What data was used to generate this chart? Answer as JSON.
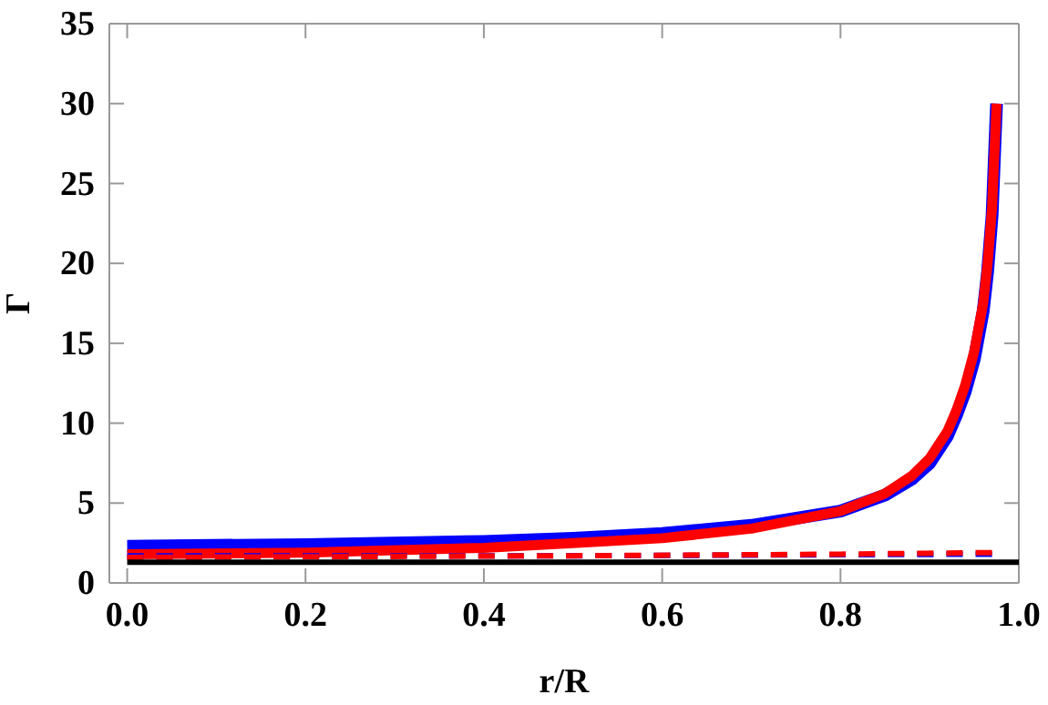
{
  "chart_data": {
    "type": "line",
    "xlabel": "r/R",
    "ylabel": "Γ",
    "xlim": [
      -0.02,
      1.0
    ],
    "ylim": [
      0,
      35
    ],
    "xticks": [
      {
        "value": 0,
        "label": "0.0"
      },
      0.2,
      0.4,
      0.6,
      0.8,
      {
        "value": 1,
        "label": "1.0"
      }
    ],
    "yticks": [
      0,
      5,
      10,
      15,
      20,
      25,
      30,
      35
    ],
    "series": [
      {
        "color": "#0000ff",
        "line_style": "solid",
        "x": [
          0,
          0.2,
          0.4,
          0.5,
          0.6,
          0.7,
          0.8,
          0.85,
          0.88,
          0.9,
          0.92,
          0.93,
          0.94,
          0.95,
          0.96,
          0.965,
          0.97,
          0.975
        ],
        "values": [
          2.3,
          2.4,
          2.6,
          2.8,
          3.1,
          3.6,
          4.5,
          5.5,
          6.5,
          7.5,
          9.2,
          10.5,
          12,
          14,
          17,
          19.5,
          23,
          30
        ]
      },
      {
        "color": "#ff0000",
        "line_style": "solid",
        "x": [
          0,
          0.2,
          0.4,
          0.5,
          0.6,
          0.7,
          0.8,
          0.85,
          0.88,
          0.9,
          0.92,
          0.93,
          0.94,
          0.95,
          0.96,
          0.965,
          0.97,
          0.975
        ],
        "values": [
          1.8,
          1.9,
          2.2,
          2.5,
          2.8,
          3.4,
          4.5,
          5.6,
          6.7,
          7.8,
          9.5,
          10.8,
          12.4,
          14.5,
          17.5,
          20,
          23.5,
          30
        ]
      },
      {
        "color": "#0000ff",
        "line_style": "dashed",
        "x": [
          0,
          0.5,
          0.97
        ],
        "values": [
          1.7,
          1.7,
          1.8
        ]
      },
      {
        "color": "#ff0000",
        "line_style": "dashed",
        "x": [
          0,
          0.5,
          0.8,
          0.97
        ],
        "values": [
          1.6,
          1.7,
          1.8,
          1.9
        ]
      },
      {
        "color": "#000000",
        "line_style": "solid",
        "x": [
          0,
          1.0
        ],
        "values": [
          1.3,
          1.3
        ]
      }
    ],
    "grid": false
  }
}
